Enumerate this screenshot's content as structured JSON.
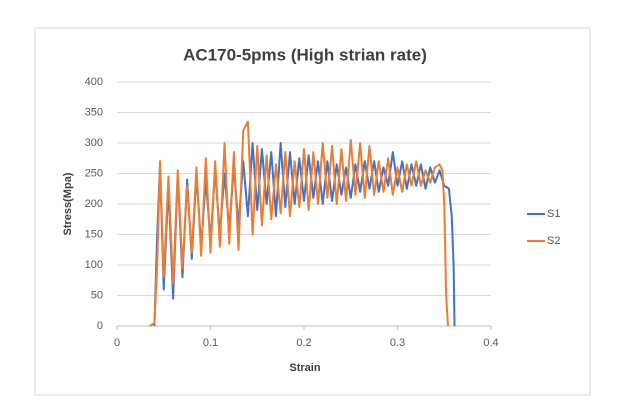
{
  "chart_data": {
    "type": "line",
    "title": "AC170-5pms (High strian rate)",
    "x_label": "Strain",
    "y_label": "Stress(Mpa)",
    "xlim": [
      0,
      0.4
    ],
    "xticks": [
      0,
      0.1,
      0.2,
      0.3,
      0.4
    ],
    "ylim": [
      0,
      400
    ],
    "yticks": [
      0,
      50,
      100,
      150,
      200,
      250,
      300,
      350,
      400
    ],
    "grid": true,
    "legend": "right",
    "series": [
      {
        "name": "S1",
        "color": "#4472c4",
        "x": [
          0.04,
          0.043,
          0.046,
          0.05,
          0.055,
          0.06,
          0.065,
          0.07,
          0.075,
          0.08,
          0.085,
          0.09,
          0.095,
          0.1,
          0.105,
          0.11,
          0.115,
          0.12,
          0.125,
          0.13,
          0.135,
          0.14,
          0.145,
          0.15,
          0.155,
          0.16,
          0.165,
          0.17,
          0.175,
          0.18,
          0.185,
          0.19,
          0.195,
          0.2,
          0.205,
          0.21,
          0.215,
          0.22,
          0.225,
          0.23,
          0.235,
          0.24,
          0.245,
          0.25,
          0.255,
          0.26,
          0.265,
          0.27,
          0.275,
          0.28,
          0.285,
          0.29,
          0.295,
          0.3,
          0.305,
          0.31,
          0.315,
          0.32,
          0.325,
          0.33,
          0.335,
          0.34,
          0.345,
          0.35,
          0.355,
          0.358,
          0.36,
          0.361
        ],
        "values": [
          0,
          150,
          265,
          60,
          230,
          45,
          250,
          80,
          240,
          110,
          250,
          130,
          240,
          140,
          255,
          150,
          250,
          160,
          260,
          165,
          270,
          180,
          300,
          190,
          290,
          200,
          285,
          180,
          300,
          195,
          285,
          200,
          275,
          205,
          280,
          210,
          270,
          200,
          270,
          205,
          265,
          215,
          260,
          210,
          265,
          220,
          270,
          225,
          270,
          220,
          260,
          230,
          285,
          230,
          270,
          225,
          265,
          230,
          265,
          225,
          260,
          235,
          255,
          230,
          225,
          180,
          100,
          0
        ]
      },
      {
        "name": "S2",
        "color": "#ed7d31",
        "x": [
          0.035,
          0.04,
          0.043,
          0.046,
          0.05,
          0.055,
          0.06,
          0.065,
          0.07,
          0.075,
          0.08,
          0.085,
          0.09,
          0.095,
          0.1,
          0.105,
          0.11,
          0.115,
          0.12,
          0.125,
          0.13,
          0.135,
          0.14,
          0.145,
          0.15,
          0.155,
          0.16,
          0.165,
          0.17,
          0.175,
          0.18,
          0.185,
          0.19,
          0.195,
          0.2,
          0.205,
          0.21,
          0.215,
          0.22,
          0.225,
          0.23,
          0.235,
          0.24,
          0.245,
          0.25,
          0.255,
          0.26,
          0.265,
          0.27,
          0.275,
          0.28,
          0.285,
          0.29,
          0.295,
          0.3,
          0.305,
          0.31,
          0.315,
          0.32,
          0.325,
          0.33,
          0.335,
          0.34,
          0.345,
          0.348,
          0.35,
          0.352,
          0.354
        ],
        "values": [
          0,
          5,
          100,
          270,
          80,
          245,
          70,
          255,
          95,
          230,
          120,
          260,
          115,
          275,
          120,
          270,
          130,
          300,
          135,
          285,
          125,
          320,
          335,
          150,
          295,
          165,
          280,
          175,
          265,
          185,
          285,
          180,
          270,
          195,
          290,
          190,
          285,
          200,
          300,
          210,
          295,
          200,
          290,
          205,
          305,
          215,
          300,
          210,
          295,
          215,
          270,
          220,
          275,
          215,
          260,
          220,
          265,
          230,
          270,
          230,
          255,
          235,
          260,
          265,
          255,
          200,
          50,
          0
        ]
      }
    ]
  }
}
